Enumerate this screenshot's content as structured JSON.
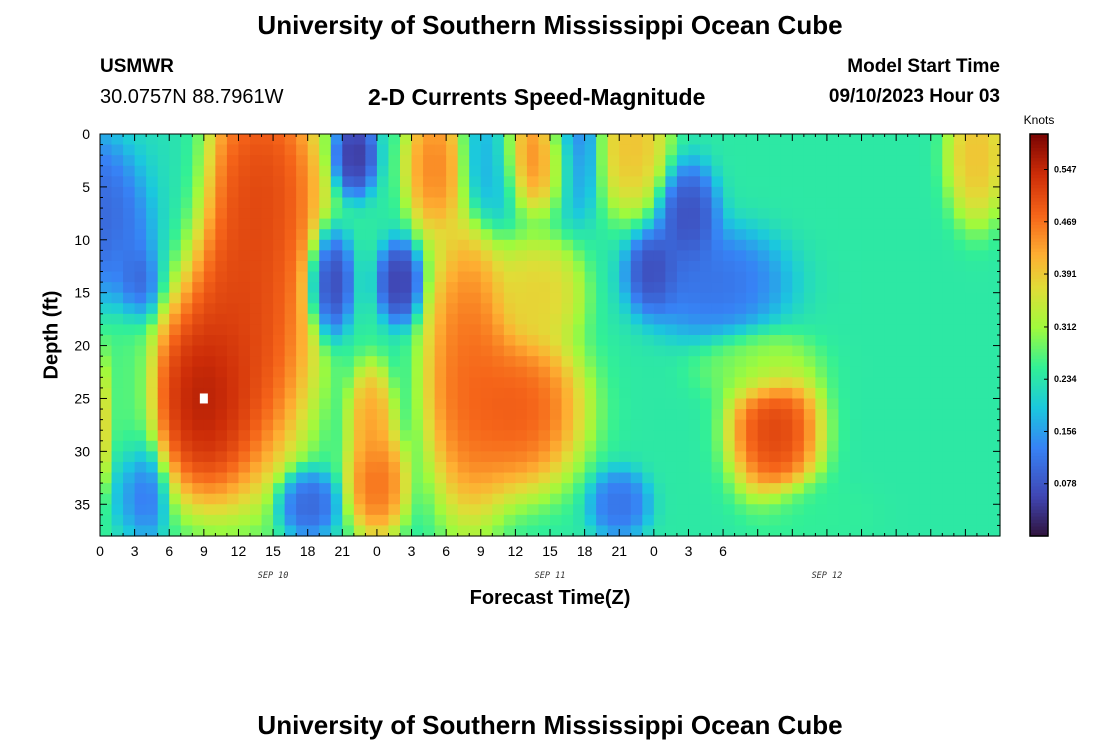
{
  "header": {
    "title": "University of Southern Mississippi Ocean Cube",
    "station_id": "USMWR",
    "coordinates": "30.0757N  88.7961W",
    "subtitle": "2-D Currents Speed-Magnitude",
    "start_label": "Model Start Time",
    "start_value": "09/10/2023 Hour 03"
  },
  "footer": {
    "title": "University of Southern Mississippi Ocean Cube"
  },
  "chart_data": {
    "type": "heatmap",
    "title": "2-D Currents Speed-Magnitude",
    "xlabel": "Forecast Time(Z)",
    "ylabel": "Depth (ft)",
    "x_tick_labels": [
      "0",
      "3",
      "6",
      "9",
      "12",
      "15",
      "18",
      "21",
      "0",
      "3",
      "6",
      "9",
      "12",
      "15",
      "18",
      "21",
      "0",
      "3",
      "6"
    ],
    "x_date_labels": [
      {
        "label": "SEP 10",
        "at_hours": 15
      },
      {
        "label": "SEP 11",
        "at_hours": 39
      },
      {
        "label": "SEP 12",
        "at_hours": 63
      }
    ],
    "x_range_hours": [
      0,
      78
    ],
    "y_ticks": [
      0,
      5,
      10,
      15,
      20,
      25,
      30,
      35
    ],
    "y_range": [
      0,
      38
    ],
    "y_inverted": true,
    "colorbar": {
      "units": "Knots",
      "ticks": [
        0.078,
        0.156,
        0.234,
        0.312,
        0.391,
        0.469,
        0.547
      ],
      "range": [
        0.0,
        0.6
      ],
      "colormap": "turbo"
    },
    "marker": {
      "hours": 9,
      "depth": 25,
      "color": "#ffffff"
    },
    "speed_features": [
      {
        "hours": 9,
        "depth": 25,
        "value": 0.6,
        "spread_h": 3.5,
        "spread_d": 7
      },
      {
        "hours": 12,
        "depth": 18,
        "value": 0.55,
        "spread_h": 5,
        "spread_d": 12
      },
      {
        "hours": 14,
        "depth": 5,
        "value": 0.54,
        "spread_h": 4,
        "spread_d": 9
      },
      {
        "hours": 6,
        "depth": 5,
        "value": 0.22,
        "spread_h": 3,
        "spread_d": 8
      },
      {
        "hours": 2,
        "depth": 26,
        "value": 0.27,
        "spread_h": 2,
        "spread_d": 16
      },
      {
        "hours": 0,
        "depth": 28,
        "value": 0.47,
        "spread_h": 0.8,
        "spread_d": 6
      },
      {
        "hours": 0,
        "depth": 8,
        "value": 0.1,
        "spread_h": 2,
        "spread_d": 6
      },
      {
        "hours": 2,
        "depth": 9,
        "value": 0.06,
        "spread_h": 3,
        "spread_d": 6
      },
      {
        "hours": 3,
        "depth": 14,
        "value": 0.04,
        "spread_h": 1.8,
        "spread_d": 3
      },
      {
        "hours": 3,
        "depth": 34,
        "value": 0.06,
        "spread_h": 2,
        "spread_d": 4
      },
      {
        "hours": 18,
        "depth": 35,
        "value": 0.08,
        "spread_h": 2,
        "spread_d": 2.5
      },
      {
        "hours": 22,
        "depth": 2,
        "value": 0.02,
        "spread_h": 1.5,
        "spread_d": 3
      },
      {
        "hours": 20,
        "depth": 14,
        "value": 0.03,
        "spread_h": 1.5,
        "spread_d": 4
      },
      {
        "hours": 26,
        "depth": 14,
        "value": 0.03,
        "spread_h": 1.5,
        "spread_d": 3
      },
      {
        "hours": 24,
        "depth": 33,
        "value": 0.5,
        "spread_h": 2,
        "spread_d": 4
      },
      {
        "hours": 23.5,
        "depth": 27,
        "value": 0.45,
        "spread_h": 1.5,
        "spread_d": 4
      },
      {
        "hours": 29,
        "depth": 3,
        "value": 0.48,
        "spread_h": 2,
        "spread_d": 5
      },
      {
        "hours": 38,
        "depth": 2,
        "value": 0.48,
        "spread_h": 3,
        "spread_d": 4
      },
      {
        "hours": 34,
        "depth": 3,
        "value": 0.15,
        "spread_h": 2,
        "spread_d": 5
      },
      {
        "hours": 36,
        "depth": 26,
        "value": 0.52,
        "spread_h": 4.5,
        "spread_d": 6
      },
      {
        "hours": 32,
        "depth": 22,
        "value": 0.5,
        "spread_h": 3,
        "spread_d": 11
      },
      {
        "hours": 38,
        "depth": 15,
        "value": 0.4,
        "spread_h": 3,
        "spread_d": 4
      },
      {
        "hours": 41,
        "depth": 1,
        "value": 0.08,
        "spread_h": 2,
        "spread_d": 5
      },
      {
        "hours": 46,
        "depth": 1,
        "value": 0.42,
        "spread_h": 2.5,
        "spread_d": 5
      },
      {
        "hours": 48,
        "depth": 13,
        "value": 0.04,
        "spread_h": 1.8,
        "spread_d": 3
      },
      {
        "hours": 51,
        "depth": 8,
        "value": 0.05,
        "spread_h": 2,
        "spread_d": 4
      },
      {
        "hours": 53,
        "depth": 14,
        "value": 0.1,
        "spread_h": 5,
        "spread_d": 4
      },
      {
        "hours": 45,
        "depth": 35,
        "value": 0.1,
        "spread_h": 2,
        "spread_d": 2.5
      },
      {
        "hours": 58.5,
        "depth": 28,
        "value": 0.55,
        "spread_h": 3,
        "spread_d": 5
      },
      {
        "hours": 57,
        "depth": 22,
        "value": 0.3,
        "spread_h": 4,
        "spread_d": 2.5
      },
      {
        "hours": 62,
        "depth": 36,
        "value": 0.25,
        "spread_h": 4,
        "spread_d": 2.5
      },
      {
        "hours": 76,
        "depth": 2,
        "value": 0.42,
        "spread_h": 2,
        "spread_d": 5
      }
    ],
    "background_value": 0.24
  }
}
